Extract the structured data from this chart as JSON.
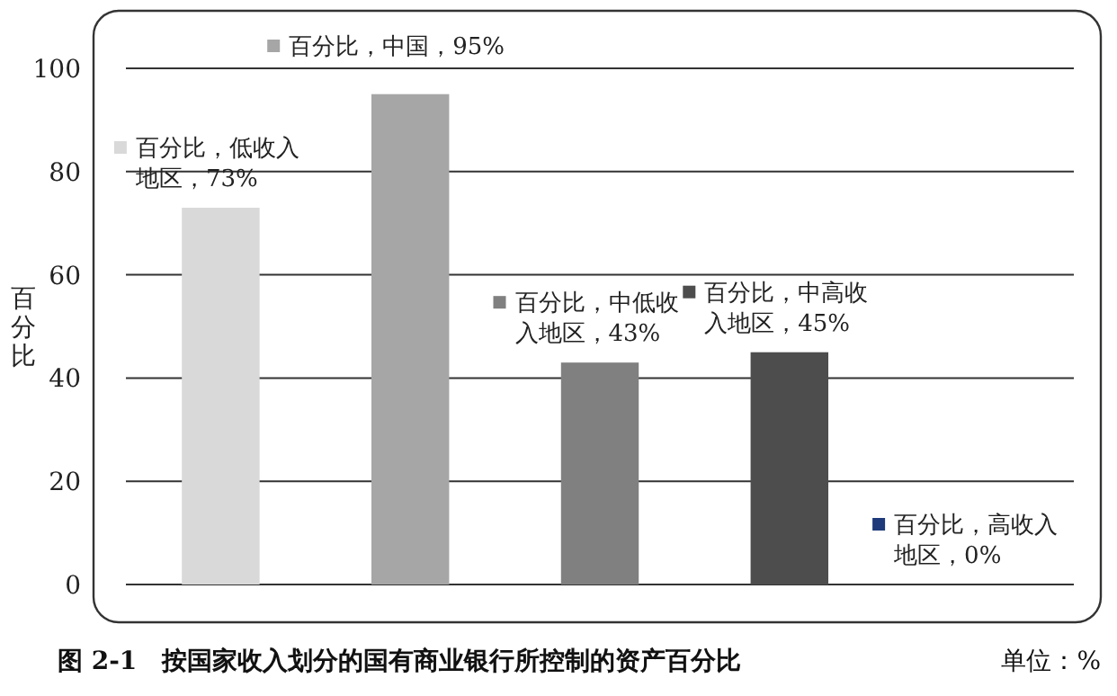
{
  "chart_data": {
    "type": "bar",
    "title": "图 2-1　按国家收入划分的国有商业银行所控制的资产百分比",
    "ylabel": "百分比",
    "annotations": [
      "单位：%"
    ],
    "categories": [
      null,
      null,
      null,
      null,
      null
    ],
    "values": [
      73,
      95,
      43,
      45,
      0
    ],
    "colors": [
      "#d9d9d9",
      "#a6a6a6",
      "#808080",
      "#4d4d4d",
      "#1f3a7a"
    ],
    "value_labels": [
      "百分比，低收入地区，73%",
      "百分比，中国，95%",
      "百分比，中低收入地区，43%",
      "百分比，中高收入地区，45%",
      "百分比，高收入地区，0%"
    ],
    "ylim": [
      0,
      100
    ],
    "yticks": [
      0,
      20,
      40,
      60,
      80,
      100
    ],
    "grid": "y"
  }
}
